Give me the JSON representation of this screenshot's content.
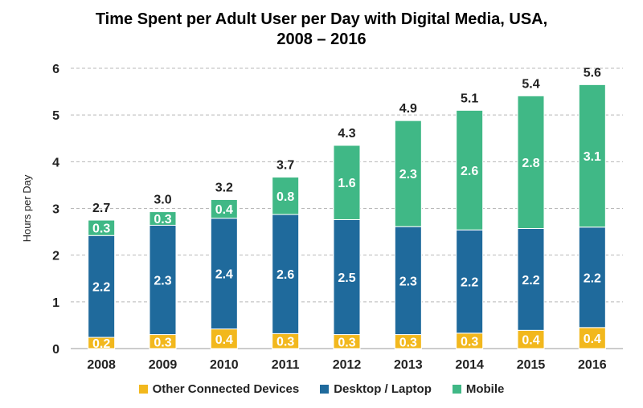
{
  "chart_data": {
    "type": "bar",
    "stacked": true,
    "title_line1": "Time Spent per Adult User per Day with Digital Media, USA,",
    "title_line2": "2008 – 2016",
    "xlabel": "",
    "ylabel": "Hours per Day",
    "ylim": [
      0,
      6
    ],
    "yticks": [
      "0",
      "1",
      "2",
      "3",
      "4",
      "5",
      "6"
    ],
    "grid": "horizontal dashed",
    "legend_position": "bottom",
    "categories": [
      "2008",
      "2009",
      "2010",
      "2011",
      "2012",
      "2013",
      "2014",
      "2015",
      "2016"
    ],
    "series": [
      {
        "name": "Other Connected Devices",
        "color": "#f2b81d",
        "values": [
          0.24,
          0.3,
          0.42,
          0.32,
          0.3,
          0.3,
          0.33,
          0.39,
          0.45
        ],
        "labels": [
          "0.2",
          "0.3",
          "0.4",
          "0.3",
          "0.3",
          "0.3",
          "0.3",
          "0.4",
          "0.4"
        ]
      },
      {
        "name": "Desktop / Laptop",
        "color": "#1f6a9c",
        "values": [
          2.18,
          2.34,
          2.37,
          2.55,
          2.46,
          2.31,
          2.21,
          2.18,
          2.15
        ],
        "labels": [
          "2.2",
          "2.3",
          "2.4",
          "2.6",
          "2.5",
          "2.3",
          "2.2",
          "2.2",
          "2.2"
        ]
      },
      {
        "name": "Mobile",
        "color": "#40b886",
        "values": [
          0.33,
          0.29,
          0.4,
          0.8,
          1.59,
          2.27,
          2.56,
          2.84,
          3.05
        ],
        "labels": [
          "0.3",
          "0.3",
          "0.4",
          "0.8",
          "1.6",
          "2.3",
          "2.6",
          "2.8",
          "3.1"
        ]
      }
    ],
    "totals": [
      "2.7",
      "3.0",
      "3.2",
      "3.7",
      "4.3",
      "4.9",
      "5.1",
      "5.4",
      "5.6"
    ]
  }
}
